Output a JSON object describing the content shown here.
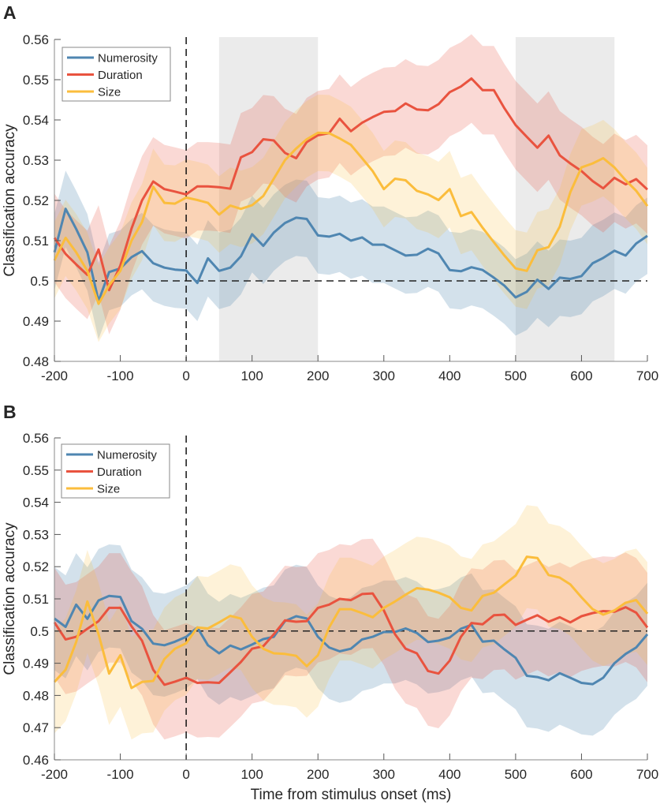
{
  "chart_data": [
    {
      "panel_label": "A",
      "type": "line",
      "title": "",
      "xlabel": "",
      "ylabel": "Classification accuracy",
      "xlim": [
        -200,
        700
      ],
      "ylim": [
        0.48,
        0.56
      ],
      "xticks": [
        "-200",
        "-100",
        "0",
        "100",
        "200",
        "300",
        "400",
        "500",
        "600",
        "700"
      ],
      "yticks": [
        "0.48",
        "0.49",
        "0.5",
        "0.51",
        "0.52",
        "0.53",
        "0.54",
        "0.55",
        "0.56"
      ],
      "grid": false,
      "legend_position": "top-left",
      "chance_level": 0.5,
      "onset_line_ms": 0,
      "shaded_windows_ms": [
        [
          50,
          200
        ],
        [
          500,
          650
        ]
      ],
      "x": [
        -200,
        -183,
        -167,
        -150,
        -133,
        -117,
        -100,
        -83,
        -67,
        -50,
        -33,
        -17,
        0,
        17,
        33,
        50,
        67,
        83,
        100,
        117,
        133,
        150,
        167,
        183,
        200,
        217,
        233,
        250,
        267,
        283,
        300,
        317,
        333,
        350,
        367,
        383,
        400,
        417,
        433,
        450,
        467,
        483,
        500,
        517,
        533,
        550,
        567,
        583,
        600,
        617,
        633,
        650,
        667,
        683,
        700
      ],
      "series": [
        {
          "name": "Numerosity",
          "color": "#4f86b1",
          "ci_halfwidth": 0.0095,
          "values": [
            0.5071,
            0.5179,
            0.5129,
            0.5071,
            0.495,
            0.5022,
            0.5031,
            0.5059,
            0.5074,
            0.5044,
            0.5033,
            0.5028,
            0.5026,
            0.4995,
            0.5056,
            0.5025,
            0.5033,
            0.5061,
            0.5116,
            0.5087,
            0.512,
            0.5144,
            0.5157,
            0.5154,
            0.5113,
            0.511,
            0.5117,
            0.51,
            0.5108,
            0.509,
            0.509,
            0.5076,
            0.5063,
            0.5065,
            0.508,
            0.5068,
            0.5027,
            0.5024,
            0.5034,
            0.5027,
            0.5008,
            0.4988,
            0.4959,
            0.4973,
            0.5003,
            0.498,
            0.5008,
            0.5005,
            0.5012,
            0.5044,
            0.5057,
            0.5075,
            0.5063,
            0.5093,
            0.5112
          ]
        },
        {
          "name": "Duration",
          "color": "#e9533f",
          "ci_halfwidth": 0.011,
          "values": [
            0.5107,
            0.5067,
            0.5041,
            0.5015,
            0.5078,
            0.4977,
            0.5038,
            0.513,
            0.52,
            0.5247,
            0.5228,
            0.5222,
            0.5215,
            0.5235,
            0.5235,
            0.5233,
            0.5229,
            0.5307,
            0.532,
            0.5352,
            0.5349,
            0.5318,
            0.5305,
            0.5345,
            0.5362,
            0.5367,
            0.5403,
            0.5372,
            0.5393,
            0.5407,
            0.542,
            0.5422,
            0.5441,
            0.5426,
            0.5424,
            0.5439,
            0.5469,
            0.5483,
            0.5503,
            0.5474,
            0.5474,
            0.5429,
            0.5387,
            0.5358,
            0.5331,
            0.5361,
            0.5312,
            0.5292,
            0.5273,
            0.5248,
            0.523,
            0.5256,
            0.524,
            0.5253,
            0.5227
          ]
        },
        {
          "name": "Size",
          "color": "#fbbd3c",
          "ci_halfwidth": 0.0095,
          "values": [
            0.5051,
            0.5107,
            0.5071,
            0.5025,
            0.4943,
            0.4989,
            0.5025,
            0.51,
            0.5146,
            0.5234,
            0.5194,
            0.5192,
            0.5207,
            0.5201,
            0.5194,
            0.5165,
            0.5187,
            0.5179,
            0.5188,
            0.5211,
            0.5254,
            0.53,
            0.5329,
            0.5352,
            0.5368,
            0.5367,
            0.5354,
            0.5338,
            0.5305,
            0.5273,
            0.5228,
            0.5254,
            0.525,
            0.5224,
            0.5215,
            0.5201,
            0.5228,
            0.5161,
            0.5171,
            0.5132,
            0.5096,
            0.5063,
            0.5031,
            0.5025,
            0.5076,
            0.5084,
            0.5135,
            0.522,
            0.5282,
            0.5292,
            0.5305,
            0.5282,
            0.525,
            0.5224,
            0.5186
          ]
        }
      ]
    },
    {
      "panel_label": "B",
      "type": "line",
      "title": "",
      "xlabel": "Time from stimulus onset (ms)",
      "ylabel": "Classification accuracy",
      "xlim": [
        -200,
        700
      ],
      "ylim": [
        0.46,
        0.56
      ],
      "xticks": [
        "-200",
        "-100",
        "0",
        "100",
        "200",
        "300",
        "400",
        "500",
        "600",
        "700"
      ],
      "yticks": [
        "0.46",
        "0.47",
        "0.48",
        "0.49",
        "0.5",
        "0.51",
        "0.52",
        "0.53",
        "0.54",
        "0.55",
        "0.56"
      ],
      "grid": false,
      "legend_position": "top-left",
      "chance_level": 0.5,
      "onset_line_ms": 0,
      "shaded_windows_ms": [],
      "x": [
        -200,
        -183,
        -167,
        -150,
        -133,
        -117,
        -100,
        -83,
        -67,
        -50,
        -33,
        -17,
        0,
        17,
        33,
        50,
        67,
        83,
        100,
        117,
        133,
        150,
        167,
        183,
        200,
        217,
        233,
        250,
        267,
        283,
        300,
        317,
        333,
        350,
        367,
        383,
        400,
        417,
        433,
        450,
        467,
        483,
        500,
        517,
        533,
        550,
        567,
        583,
        600,
        617,
        633,
        650,
        667,
        683,
        700
      ],
      "series": [
        {
          "name": "Numerosity",
          "color": "#4f86b1",
          "ci_halfwidth": 0.016,
          "values": [
            0.5039,
            0.5013,
            0.5082,
            0.5038,
            0.5095,
            0.5109,
            0.5106,
            0.5031,
            0.5007,
            0.4961,
            0.4956,
            0.4967,
            0.4982,
            0.5011,
            0.4956,
            0.4931,
            0.4955,
            0.4943,
            0.4958,
            0.4975,
            0.4982,
            0.5031,
            0.5046,
            0.5039,
            0.4982,
            0.4949,
            0.4937,
            0.4945,
            0.4974,
            0.4982,
            0.4997,
            0.4997,
            0.5008,
            0.4994,
            0.4966,
            0.497,
            0.498,
            0.5007,
            0.5019,
            0.4967,
            0.497,
            0.4943,
            0.4917,
            0.4861,
            0.4857,
            0.4847,
            0.4869,
            0.4855,
            0.4839,
            0.4835,
            0.4855,
            0.49,
            0.4929,
            0.4949,
            0.499
          ]
        },
        {
          "name": "Duration",
          "color": "#e9533f",
          "ci_halfwidth": 0.017,
          "values": [
            0.5027,
            0.4974,
            0.4982,
            0.5007,
            0.5031,
            0.5072,
            0.5072,
            0.5015,
            0.497,
            0.488,
            0.4833,
            0.4843,
            0.4855,
            0.4839,
            0.4841,
            0.4839,
            0.4872,
            0.4904,
            0.4945,
            0.4953,
            0.499,
            0.5033,
            0.5029,
            0.5031,
            0.5072,
            0.5082,
            0.51,
            0.5096,
            0.5115,
            0.5117,
            0.5064,
            0.499,
            0.4945,
            0.4931,
            0.4876,
            0.4868,
            0.4908,
            0.4982,
            0.5025,
            0.5021,
            0.5049,
            0.5051,
            0.5019,
            0.5035,
            0.5049,
            0.5029,
            0.5043,
            0.5027,
            0.5046,
            0.5056,
            0.5062,
            0.506,
            0.5074,
            0.5057,
            0.5011
          ]
        },
        {
          "name": "Size",
          "color": "#fbbd3c",
          "ci_halfwidth": 0.016,
          "values": [
            0.4842,
            0.488,
            0.4966,
            0.5092,
            0.499,
            0.4868,
            0.4925,
            0.4823,
            0.4842,
            0.4845,
            0.4913,
            0.4945,
            0.4962,
            0.5011,
            0.5008,
            0.5027,
            0.5047,
            0.5039,
            0.4982,
            0.4945,
            0.4931,
            0.4929,
            0.4923,
            0.4891,
            0.4925,
            0.5011,
            0.5068,
            0.5068,
            0.5056,
            0.5043,
            0.5072,
            0.5092,
            0.5113,
            0.5133,
            0.5129,
            0.5119,
            0.5105,
            0.5072,
            0.5064,
            0.5109,
            0.5119,
            0.5145,
            0.5172,
            0.5231,
            0.5227,
            0.5174,
            0.5166,
            0.5145,
            0.5105,
            0.5068,
            0.5051,
            0.5064,
            0.5088,
            0.5096,
            0.5054
          ]
        }
      ]
    }
  ]
}
